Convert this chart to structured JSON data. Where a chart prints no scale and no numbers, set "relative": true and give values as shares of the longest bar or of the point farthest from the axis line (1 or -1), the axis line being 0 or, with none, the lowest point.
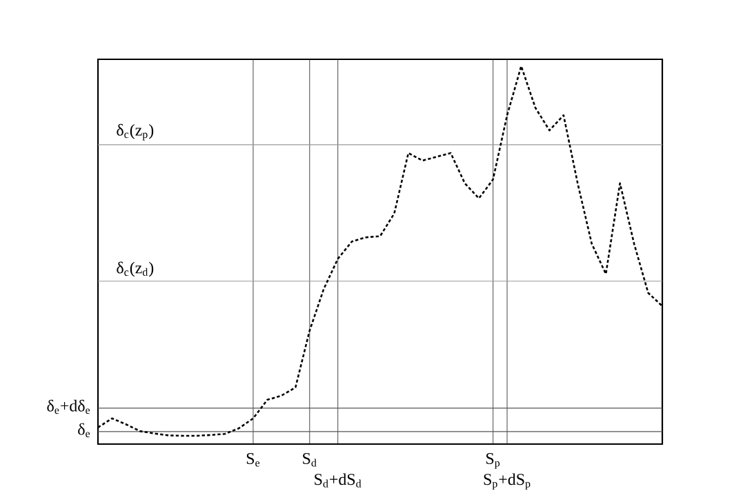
{
  "chart_data": {
    "type": "line",
    "relative": true,
    "line_style": "dashed",
    "marker": "none",
    "tick_labels": "x",
    "grid": "x",
    "categories": [
      null,
      null,
      null,
      null,
      null,
      null,
      null,
      null,
      null,
      null,
      null,
      "S$_{e}$",
      null,
      null,
      null,
      "S$_{d}$",
      null,
      "S$_{d}$+dS$_{d}$",
      null,
      null,
      null,
      null,
      null,
      null,
      null,
      null,
      null,
      null,
      "S$_{p}$",
      "S$_{p}$+dS$_{p}$",
      null,
      null,
      null,
      null,
      null,
      null,
      null,
      null,
      null,
      null,
      null
    ],
    "series": [
      {
        "color": "#000000",
        "values": [
          0.044,
          0.068,
          0.052,
          0.034,
          0.028,
          0.023,
          0.022,
          0.022,
          0.024,
          0.027,
          0.042,
          0.068,
          0.117,
          0.128,
          0.15,
          0.3,
          0.41,
          0.49,
          0.536,
          0.547,
          0.55,
          0.61,
          0.77,
          0.75,
          0.76,
          0.77,
          0.69,
          0.65,
          0.7,
          0.87,
          1,
          0.89,
          0.83,
          0.87,
          0.69,
          0.53,
          0.45,
          0.69,
          0.53,
          0.4,
          0.365
        ]
      }
    ],
    "ref_lines": [
      {
        "axis": "y",
        "value": 0.033,
        "label": "δ$_{e}$",
        "color": "#555555"
      },
      {
        "axis": "y",
        "value": 0.095,
        "label": "δ$_{e}$+dδ$_{e}$",
        "color": "#555555"
      },
      {
        "axis": "y",
        "value": 0.431,
        "label": "δ$_{c}$(z$_{d}$)",
        "color": "#999999"
      },
      {
        "axis": "y",
        "value": 0.792,
        "label": "δ$_{c}$(z$_{p}$)",
        "color": "#999999"
      }
    ]
  }
}
